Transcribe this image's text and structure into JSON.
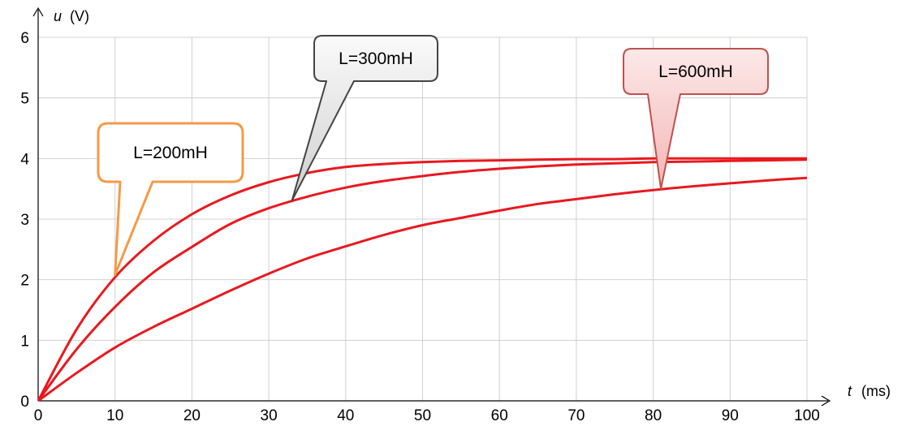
{
  "chart_data": {
    "type": "line",
    "xlabel_var": "t",
    "xlabel_unit": "(ms)",
    "ylabel_var": "u",
    "ylabel_unit": "(V)",
    "xlim": [
      0,
      100
    ],
    "ylim": [
      0,
      6
    ],
    "grid": true,
    "x_ticks": [
      "0",
      "10",
      "20",
      "30",
      "40",
      "50",
      "60",
      "70",
      "80",
      "90",
      "100"
    ],
    "y_ticks": [
      "0",
      "1",
      "2",
      "3",
      "4",
      "5",
      "6"
    ],
    "series_color": "#e8191f",
    "x": [
      0,
      5,
      10,
      15,
      20,
      25,
      30,
      35,
      40,
      45,
      50,
      55,
      60,
      65,
      70,
      75,
      80,
      85,
      90,
      95,
      100
    ],
    "series": [
      {
        "values": [
          0,
          1.18,
          2.04,
          2.64,
          3.08,
          3.39,
          3.61,
          3.76,
          3.86,
          3.91,
          3.94,
          3.96,
          3.97,
          3.98,
          3.99,
          3.99,
          4.0,
          4.0,
          4.0,
          4.0,
          4.0
        ]
      },
      {
        "values": [
          0,
          0.85,
          1.55,
          2.12,
          2.54,
          2.92,
          3.18,
          3.37,
          3.52,
          3.63,
          3.71,
          3.78,
          3.83,
          3.87,
          3.9,
          3.92,
          3.94,
          3.95,
          3.96,
          3.97,
          3.98
        ]
      },
      {
        "values": [
          0,
          0.46,
          0.88,
          1.22,
          1.52,
          1.82,
          2.1,
          2.35,
          2.55,
          2.74,
          2.9,
          3.02,
          3.14,
          3.25,
          3.33,
          3.41,
          3.48,
          3.54,
          3.59,
          3.64,
          3.68
        ]
      }
    ],
    "annotations": [
      {
        "text": "L=200mH",
        "style": "orange",
        "border": "#f39a48",
        "fill": "#ffffff",
        "target_x": 10,
        "target_y": 2.08
      },
      {
        "text": "L=300mH",
        "style": "gray",
        "border": "#444444",
        "fill": "#e4e4e4",
        "target_x": 33,
        "target_y": 3.3
      },
      {
        "text": "L=600mH",
        "style": "pink",
        "border": "#c0504d",
        "fill": "#f8d0d0",
        "target_x": 81,
        "target_y": 3.5
      }
    ]
  }
}
